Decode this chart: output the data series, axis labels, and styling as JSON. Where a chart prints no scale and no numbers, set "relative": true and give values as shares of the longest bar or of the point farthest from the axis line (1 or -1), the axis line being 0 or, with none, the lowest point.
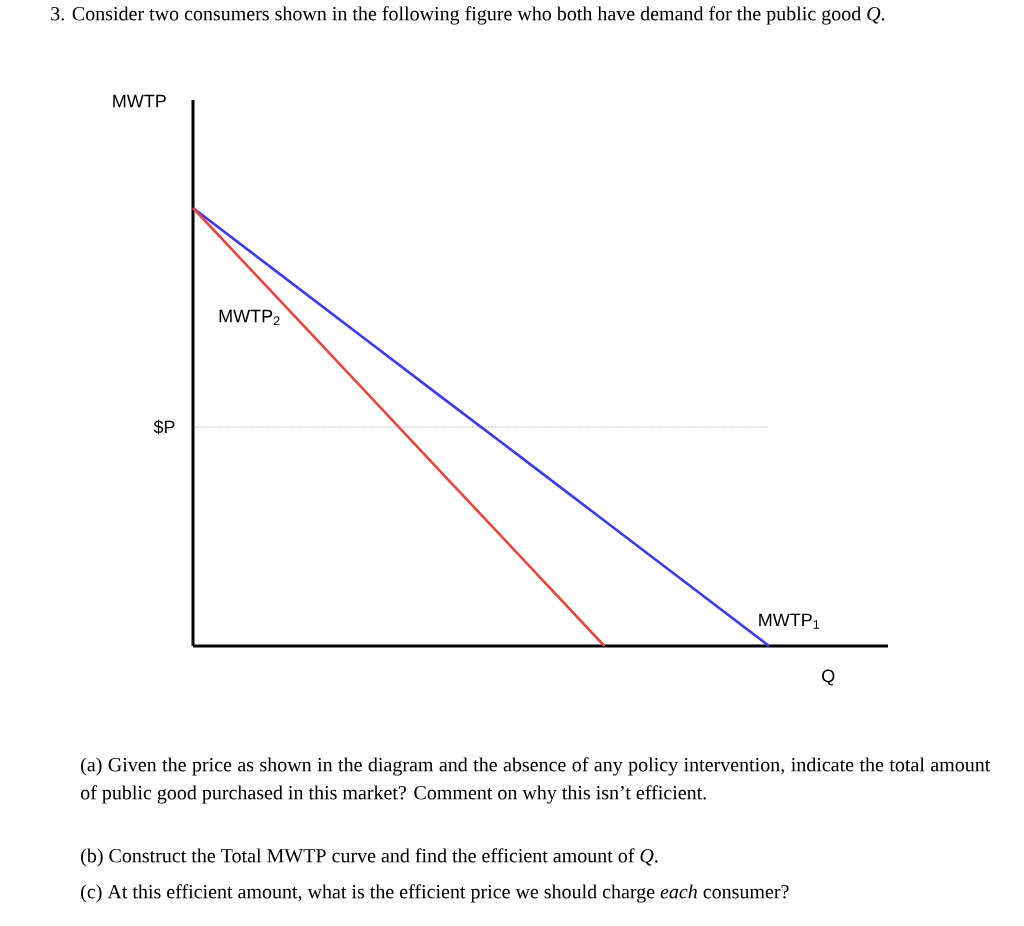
{
  "chart_data": {
    "type": "line",
    "title": "3. Consider two consumers shown in the following figure who both have demand for the public good *Q*.",
    "xlabel": "Q",
    "relative": true,
    "categories": [
      null,
      null,
      null,
      null,
      null,
      null,
      null,
      null
    ],
    "series": [
      {
        "name": "MWTP$_{1}$",
        "color": "#3a3af0",
        "values": [
          1,
          0.857,
          0.714,
          0.571,
          0.429,
          0.286,
          0.143,
          0
        ]
      },
      {
        "name": "MWTP$_{2}$",
        "color": "#e8453c",
        "values": [
          1,
          0.8,
          0.6,
          0.4,
          0.2,
          0,
          null,
          null
        ]
      }
    ],
    "ref_lines": [
      {
        "axis": "y",
        "value": 0.5,
        "label": "$P",
        "line_style": "dotted",
        "color": "#888888"
      }
    ],
    "annotations": [
      "(a) Given the price as shown in the diagram and the absence of any policy intervention, indicate the total amount of public good purchased in this market? Comment on why this isn’t efficient.",
      "(b) Construct the Total MWTP curve and find the efficient amount of *Q*.",
      "(c) At this efficient amount, what is the efficient price we should charge *each* consumer?",
      "MWTP"
    ]
  }
}
